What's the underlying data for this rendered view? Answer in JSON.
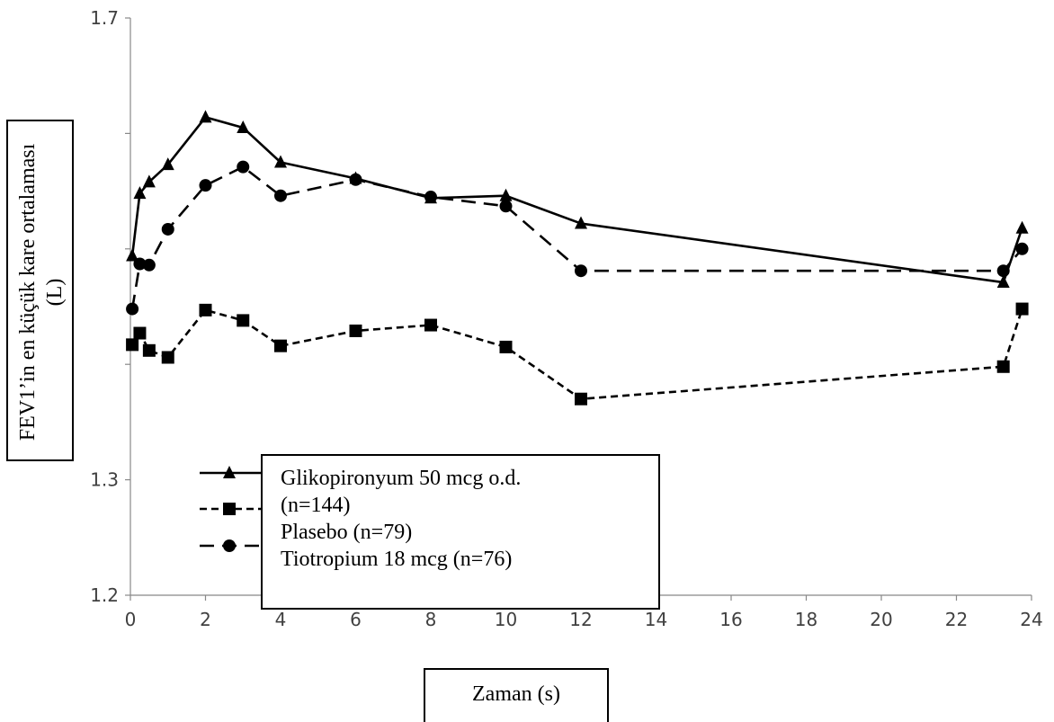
{
  "chart_data": {
    "type": "line",
    "ylabel": "FEV1’in en küçük kare ortalaması (L)",
    "xlabel": "Zaman (s)",
    "ylim": [
      1.2,
      1.7
    ],
    "xlim": [
      0,
      24
    ],
    "y_ticks": [
      "1.2",
      "1.3",
      "1.7"
    ],
    "y_tick_values": [
      1.2,
      1.3,
      1.7
    ],
    "x_ticks": [
      "0",
      "2",
      "4",
      "6",
      "8",
      "10",
      "12",
      "14",
      "16",
      "18",
      "20",
      "22",
      "24"
    ],
    "x_tick_values": [
      0,
      2,
      4,
      6,
      8,
      10,
      12,
      14,
      16,
      18,
      20,
      22,
      24
    ],
    "grid": false,
    "legend_position": "bottom-center",
    "legend_lines": [
      "Glikopironyum 50 mcg o.d.",
      "(n=144)",
      "Plasebo (n=79)",
      "Tiotropium 18 mcg (n=76)"
    ],
    "series": [
      {
        "marker": "triangle",
        "dash": "solid",
        "x": [
          0.05,
          0.25,
          0.5,
          1,
          2,
          3,
          4,
          6,
          8,
          10,
          12,
          23.25,
          23.75
        ],
        "y": [
          1.494,
          1.548,
          1.558,
          1.573,
          1.614,
          1.605,
          1.575,
          1.561,
          1.544,
          1.546,
          1.522,
          1.471,
          1.518
        ]
      },
      {
        "marker": "square",
        "dash": "short-dash",
        "x": [
          0.05,
          0.25,
          0.5,
          1,
          2,
          3,
          4,
          6,
          8,
          10,
          12,
          23.25,
          23.75
        ],
        "y": [
          1.417,
          1.427,
          1.412,
          1.406,
          1.447,
          1.438,
          1.416,
          1.429,
          1.434,
          1.415,
          1.37,
          1.398,
          1.448
        ]
      },
      {
        "marker": "circle",
        "dash": "long-dash",
        "x": [
          0.05,
          0.25,
          0.5,
          1,
          2,
          3,
          4,
          6,
          8,
          10,
          12,
          23.25,
          23.75
        ],
        "y": [
          1.448,
          1.487,
          1.486,
          1.517,
          1.555,
          1.571,
          1.546,
          1.56,
          1.545,
          1.537,
          1.481,
          1.481,
          1.5
        ]
      }
    ]
  }
}
